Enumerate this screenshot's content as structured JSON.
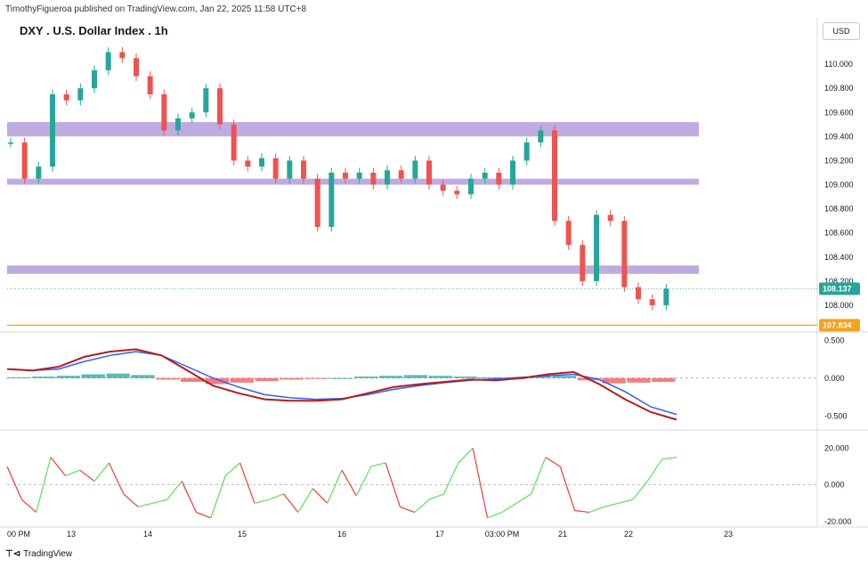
{
  "header": {
    "publisher": "TimothyFigueroa published on TradingView.com, Jan 22, 2025 11:58 UTC+8"
  },
  "symbol_title": "DXY . U.S. Dollar Index . 1h",
  "currency_button": "USD",
  "footer": {
    "brand": "TradingView"
  },
  "colors": {
    "bull": "#26a69a",
    "bear": "#ef5350",
    "zone": "#b39ddb",
    "orange": "#f7a21b",
    "macd_fast": "#2962ff",
    "macd_slow_up": "#4caf50",
    "macd_slow_down": "#b71c1c",
    "osc_up": "#5ae05a",
    "osc_down": "#ef3b3b"
  },
  "chart_data": [
    {
      "type": "candlestick",
      "title": "DXY . U.S. Dollar Index . 1h",
      "yticks": [
        "110.000",
        "109.800",
        "109.600",
        "109.400",
        "109.200",
        "109.000",
        "108.800",
        "108.600",
        "108.400",
        "108.200",
        "108.000"
      ],
      "ylim": [
        107.8,
        110.2
      ],
      "xticks": [
        "00 PM",
        "13",
        "14",
        "15",
        "16",
        "17",
        "03:00 PM",
        "21",
        "22",
        "23"
      ],
      "price_labels": {
        "last": 108.137,
        "level": 107.834
      },
      "zones": [
        {
          "low": 109.4,
          "high": 109.52
        },
        {
          "low": 109.0,
          "high": 109.05
        },
        {
          "low": 108.26,
          "high": 108.33
        }
      ],
      "horizontal_line": 107.834,
      "close_series": [
        109.35,
        109.05,
        109.15,
        109.75,
        109.7,
        109.8,
        109.95,
        110.1,
        110.05,
        109.9,
        109.75,
        109.45,
        109.55,
        109.6,
        109.8,
        109.5,
        109.2,
        109.15,
        109.22,
        109.05,
        109.2,
        109.05,
        108.65,
        109.1,
        109.05,
        109.1,
        109.0,
        109.12,
        109.05,
        109.2,
        109.0,
        108.95,
        108.92,
        109.05,
        109.1,
        109.0,
        109.2,
        109.35,
        109.45,
        108.7,
        108.5,
        108.2,
        108.75,
        108.7,
        108.15,
        108.05,
        108.0,
        108.137
      ]
    },
    {
      "type": "line",
      "title": "",
      "yticks": [
        "0.500",
        "0.000",
        "-0.500"
      ],
      "ylim": [
        -0.65,
        0.55
      ],
      "series": [
        {
          "values": [
            0.12,
            0.1,
            0.15,
            0.28,
            0.35,
            0.38,
            0.3,
            0.1,
            -0.1,
            -0.2,
            -0.28,
            -0.3,
            -0.3,
            -0.28,
            -0.2,
            -0.12,
            -0.08,
            -0.05,
            -0.02,
            -0.03,
            0.0,
            0.05,
            0.08,
            -0.08,
            -0.28,
            -0.45,
            -0.55
          ]
        },
        {
          "values": [
            0.12,
            0.1,
            0.12,
            0.22,
            0.3,
            0.35,
            0.3,
            0.15,
            0.0,
            -0.12,
            -0.22,
            -0.26,
            -0.28,
            -0.27,
            -0.22,
            -0.15,
            -0.1,
            -0.06,
            -0.03,
            -0.01,
            0.01,
            0.03,
            0.05,
            -0.02,
            -0.18,
            -0.38,
            -0.48
          ]
        }
      ],
      "histogram": [
        0.01,
        0.02,
        0.03,
        0.05,
        0.06,
        0.04,
        -0.02,
        -0.05,
        -0.08,
        -0.06,
        -0.04,
        -0.02,
        -0.01,
        0.0,
        0.02,
        0.03,
        0.04,
        0.03,
        0.02,
        0.01,
        0.0,
        0.02,
        0.03,
        -0.03,
        -0.07,
        -0.06,
        -0.05
      ]
    },
    {
      "type": "line",
      "title": "",
      "yticks": [
        "20.000",
        "0.000",
        "-20.000"
      ],
      "ylim": [
        -22,
        28
      ],
      "series": [
        {
          "values": [
            10,
            -8,
            -15,
            15,
            5,
            8,
            2,
            12,
            -5,
            -12,
            -10,
            -8,
            2,
            -15,
            -18,
            5,
            12,
            -10,
            -8,
            -5,
            -15,
            -2,
            -10,
            8,
            -6,
            10,
            12,
            -12,
            -15,
            -8,
            -5,
            12,
            20,
            -18,
            -15,
            -10,
            -5,
            15,
            10,
            -14,
            -15,
            -12,
            -10,
            -8,
            2,
            14,
            15
          ]
        }
      ]
    }
  ]
}
